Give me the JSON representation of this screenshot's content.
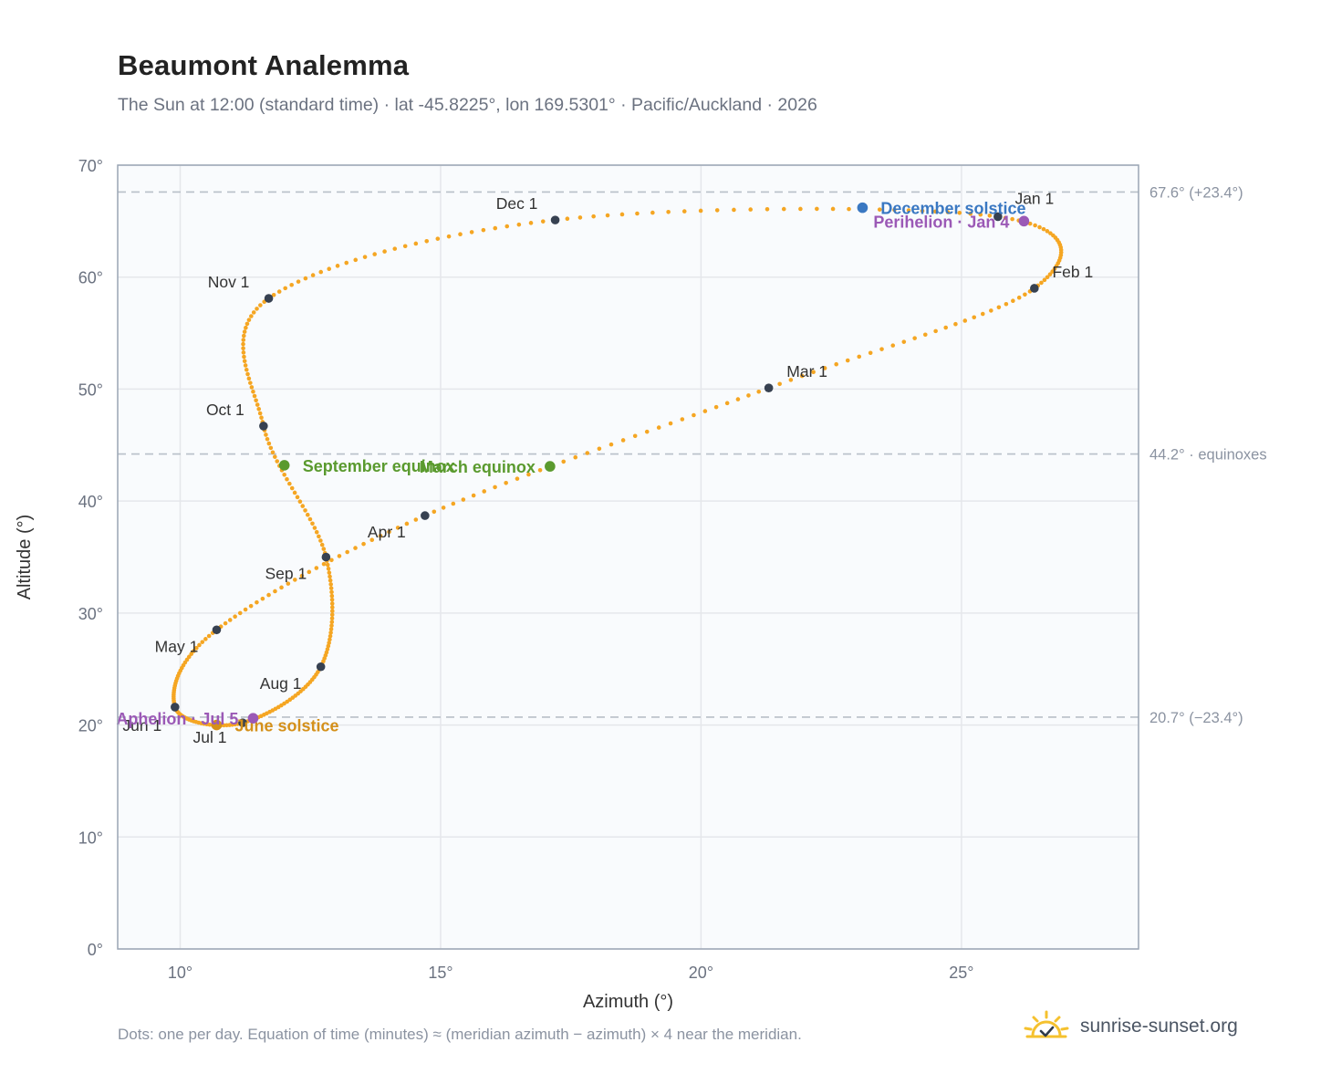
{
  "header": {
    "title": "Beaumont Analemma",
    "subtitle": "The Sun at 12:00 (standard time) · lat -45.8225°, lon 169.5301° · Pacific/Auckland · 2026"
  },
  "footer": {
    "note": "Dots: one per day. Equation of time (minutes) ≈ (meridian azimuth − azimuth) × 4 near the meridian.",
    "brand": "sunrise-sunset.org"
  },
  "colors": {
    "curve": "#f5a623",
    "month_marker": "#374151",
    "december_solstice": "#3a78c2",
    "june_solstice": "#d4901a",
    "equinox": "#5a9a2e",
    "apsis": "#9b59b6",
    "grid": "#e5e7eb",
    "plot_bg": "#f9fbfd",
    "reference_line": "#b8c0c8"
  },
  "chart_data": {
    "type": "scatter",
    "xlabel": "Azimuth (°)",
    "ylabel": "Altitude (°)",
    "xlim": [
      8.8,
      28.4
    ],
    "ylim": [
      0,
      70
    ],
    "x_ticks": [
      10,
      15,
      20,
      25
    ],
    "x_tick_labels": [
      "10°",
      "15°",
      "20°",
      "25°"
    ],
    "y_ticks": [
      0,
      10,
      20,
      30,
      40,
      50,
      60,
      70
    ],
    "y_tick_labels": [
      "0°",
      "10°",
      "20°",
      "30°",
      "40°",
      "50°",
      "60°",
      "70°"
    ],
    "grid": true,
    "reference_lines": [
      {
        "y": 67.6,
        "label": "67.6° (+23.4°)"
      },
      {
        "y": 44.2,
        "label": "44.2° · equinoxes"
      },
      {
        "y": 20.7,
        "label": "20.7° (−23.4°)"
      }
    ],
    "month_markers": [
      {
        "label": "Jan 1",
        "x": 25.7,
        "y": 65.4
      },
      {
        "label": "Feb 1",
        "x": 26.4,
        "y": 59.0
      },
      {
        "label": "Mar 1",
        "x": 21.3,
        "y": 50.1
      },
      {
        "label": "Apr 1",
        "x": 14.7,
        "y": 38.7
      },
      {
        "label": "May 1",
        "x": 10.7,
        "y": 28.5
      },
      {
        "label": "Jun 1",
        "x": 9.9,
        "y": 21.6
      },
      {
        "label": "Jul 1",
        "x": 11.2,
        "y": 20.2
      },
      {
        "label": "Aug 1",
        "x": 12.7,
        "y": 25.2
      },
      {
        "label": "Sep 1",
        "x": 12.8,
        "y": 35.0
      },
      {
        "label": "Oct 1",
        "x": 11.6,
        "y": 46.7
      },
      {
        "label": "Nov 1",
        "x": 11.7,
        "y": 58.1
      },
      {
        "label": "Dec 1",
        "x": 17.2,
        "y": 65.1
      }
    ],
    "events": [
      {
        "label": "December solstice",
        "x": 23.1,
        "y": 66.2,
        "kind": "december_solstice"
      },
      {
        "label": "Perihelion · Jan 4",
        "x": 26.2,
        "y": 65.0,
        "kind": "apsis"
      },
      {
        "label": "March equinox",
        "x": 17.1,
        "y": 43.1,
        "kind": "equinox"
      },
      {
        "label": "September equinox",
        "x": 12.0,
        "y": 43.2,
        "kind": "equinox"
      },
      {
        "label": "June solstice",
        "x": 10.7,
        "y": 20.0,
        "kind": "june_solstice"
      },
      {
        "label": "Aphelion · Jul 5",
        "x": 11.4,
        "y": 20.6,
        "kind": "apsis"
      }
    ]
  }
}
